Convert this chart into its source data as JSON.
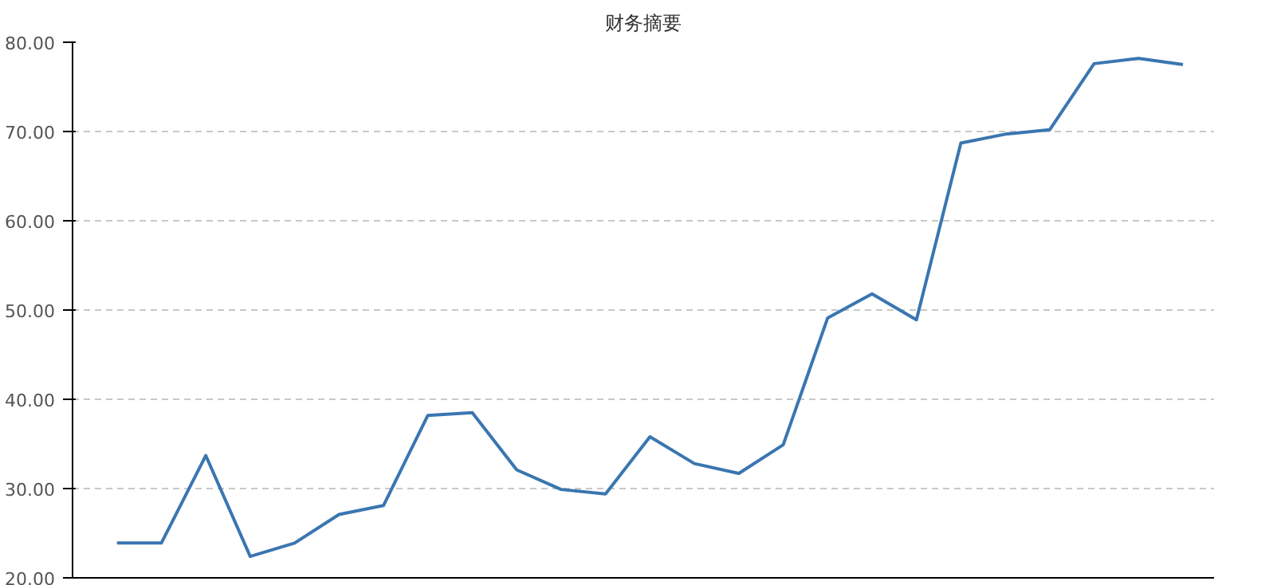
{
  "chart_data": {
    "type": "line",
    "title": "财务摘要",
    "categories": [
      null,
      null,
      null,
      null,
      null,
      null,
      null,
      null,
      null,
      null,
      null,
      null,
      null,
      null,
      null,
      null,
      null,
      null,
      null,
      null,
      null,
      null,
      null,
      null,
      null
    ],
    "series": [
      {
        "color": "#3a76b0",
        "values": [
          23.9,
          23.9,
          33.7,
          22.4,
          23.9,
          27.1,
          28.1,
          38.2,
          38.5,
          32.1,
          29.9,
          29.4,
          35.8,
          32.8,
          31.7,
          34.9,
          49.1,
          51.8,
          48.9,
          68.7,
          69.7,
          70.2,
          77.6,
          78.2,
          77.5
        ]
      }
    ],
    "ylim": [
      20,
      80
    ],
    "yticks": [
      {
        "value": 20,
        "label": "20.00"
      },
      {
        "value": 30,
        "label": "30.00"
      },
      {
        "value": 40,
        "label": "40.00"
      },
      {
        "value": 50,
        "label": "50.00"
      },
      {
        "value": 60,
        "label": "60.00"
      },
      {
        "value": 70,
        "label": "70.00"
      },
      {
        "value": 80,
        "label": "80.00"
      }
    ],
    "grid": "y",
    "line_style": "solid",
    "marker": "none"
  }
}
